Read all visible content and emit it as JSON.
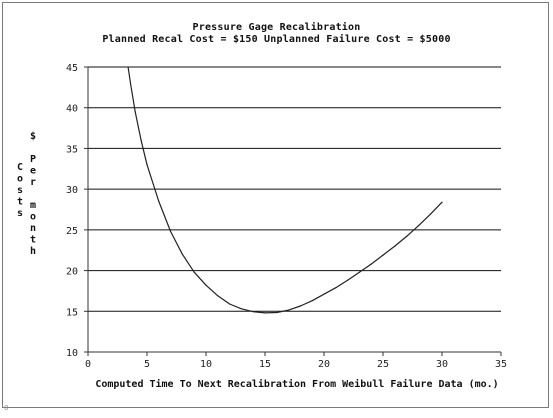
{
  "chart_data": {
    "type": "line",
    "title": "Pressure Gage Recalibration",
    "subtitle": "Planned Recal Cost = $150  Unplanned Failure Cost = $5000",
    "xlabel": "Computed Time To Next Recalibration From Weibull Failure Data (mo.)",
    "ylabel": "$ per month",
    "ylabel_columns": [
      "Costs",
      "$ Per month"
    ],
    "xlim": [
      0,
      35
    ],
    "ylim": [
      10,
      45
    ],
    "x_ticks": [
      "0",
      "5",
      "10",
      "15",
      "20",
      "25",
      "30",
      "35"
    ],
    "y_ticks": [
      "10",
      "15",
      "20",
      "25",
      "30",
      "35",
      "40",
      "45"
    ],
    "grid": "horizontal",
    "legend": "none",
    "series": [
      {
        "points": [
          [
            3.4,
            45
          ],
          [
            3.6,
            43
          ],
          [
            4,
            39.5
          ],
          [
            4.5,
            36
          ],
          [
            5,
            33
          ],
          [
            6,
            28.5
          ],
          [
            7,
            24.8
          ],
          [
            8,
            22
          ],
          [
            9,
            19.8
          ],
          [
            10,
            18.2
          ],
          [
            11,
            16.9
          ],
          [
            12,
            15.9
          ],
          [
            13,
            15.3
          ],
          [
            14,
            14.95
          ],
          [
            15,
            14.8
          ],
          [
            16,
            14.85
          ],
          [
            17,
            15.15
          ],
          [
            18,
            15.65
          ],
          [
            19,
            16.3
          ],
          [
            20,
            17.1
          ],
          [
            21,
            17.9
          ],
          [
            22,
            18.8
          ],
          [
            23,
            19.8
          ],
          [
            24,
            20.8
          ],
          [
            25,
            21.9
          ],
          [
            26,
            23.0
          ],
          [
            27,
            24.2
          ],
          [
            28,
            25.5
          ],
          [
            29,
            26.9
          ],
          [
            30,
            28.4
          ]
        ]
      }
    ],
    "colors": {
      "line": "#222222",
      "grid": "#111111",
      "axis": "#333333"
    }
  },
  "corner_mark": "0"
}
